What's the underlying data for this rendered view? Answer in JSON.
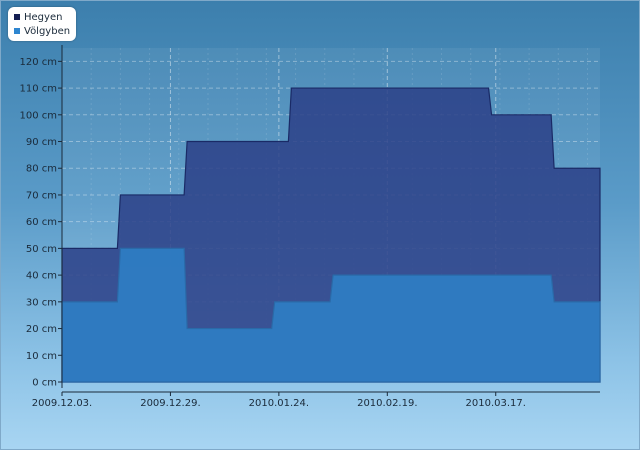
{
  "chart_data": {
    "type": "area",
    "step": true,
    "x_start": "2009.12.03.",
    "x_end": "2010.04.11.",
    "xticks": [
      "2009.12.03.",
      "2009.12.29.",
      "2010.01.24.",
      "2010.02.19.",
      "2010.03.17."
    ],
    "yticks": [
      "0 cm",
      "10 cm",
      "20 cm",
      "30 cm",
      "40 cm",
      "50 cm",
      "60 cm",
      "70 cm",
      "80 cm",
      "90 cm",
      "100 cm",
      "110 cm",
      "120 cm"
    ],
    "ylim": [
      0,
      125
    ],
    "grid": true,
    "legend_position": "top-left",
    "series": [
      {
        "name": "Hegyen",
        "color": "#2b3f87",
        "points": [
          {
            "date": "2009.12.03.",
            "value": 50
          },
          {
            "date": "2009.12.17.",
            "value": 70
          },
          {
            "date": "2010.01.02.",
            "value": 90
          },
          {
            "date": "2010.01.27.",
            "value": 110
          },
          {
            "date": "2010.03.16.",
            "value": 100
          },
          {
            "date": "2010.03.31.",
            "value": 80
          },
          {
            "date": "2010.04.11.",
            "value": 80
          }
        ]
      },
      {
        "name": "Völgyben",
        "color": "#2e7cc2",
        "points": [
          {
            "date": "2009.12.03.",
            "value": 30
          },
          {
            "date": "2009.12.17.",
            "value": 50
          },
          {
            "date": "2010.01.02.",
            "value": 20
          },
          {
            "date": "2010.01.23.",
            "value": 30
          },
          {
            "date": "2010.02.06.",
            "value": 40
          },
          {
            "date": "2010.03.31.",
            "value": 30
          },
          {
            "date": "2010.04.11.",
            "value": 30
          }
        ]
      }
    ]
  }
}
